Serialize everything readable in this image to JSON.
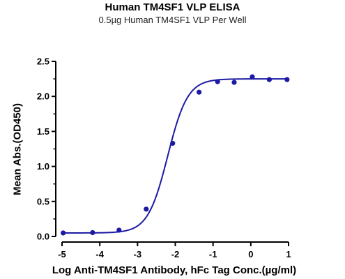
{
  "chart_data": {
    "type": "scatter",
    "title": "Human TM4SF1 VLP ELISA",
    "subtitle": "0.5µg Human TM4SF1 VLP Per Well",
    "xlabel": "Log Anti-TM4SF1 Antibody, hFc Tag Conc.(µg/ml)",
    "ylabel": "Mean Abs.(OD450)",
    "xlim": [
      -5,
      1
    ],
    "ylim": [
      0,
      2.5
    ],
    "xticks": [
      -5,
      -4,
      -3,
      -2,
      -1,
      0,
      1
    ],
    "yticks": [
      0.0,
      0.5,
      1.0,
      1.5,
      2.0,
      2.5
    ],
    "xtick_labels": [
      "-5",
      "-4",
      "-3",
      "-2",
      "-1",
      "0",
      "1"
    ],
    "ytick_labels": [
      "0.0",
      "0.5",
      "1.0",
      "1.5",
      "2.0",
      "2.5"
    ],
    "grid": false,
    "series": [
      {
        "points": [
          {
            "x": -4.97,
            "y": 0.05
          },
          {
            "x": -4.19,
            "y": 0.055
          },
          {
            "x": -3.49,
            "y": 0.09
          },
          {
            "x": -2.77,
            "y": 0.39
          },
          {
            "x": -2.07,
            "y": 1.33
          },
          {
            "x": -1.37,
            "y": 2.06
          },
          {
            "x": -0.88,
            "y": 2.21
          },
          {
            "x": -0.44,
            "y": 2.2
          },
          {
            "x": 0.04,
            "y": 2.28
          },
          {
            "x": 0.49,
            "y": 2.24
          },
          {
            "x": 0.96,
            "y": 2.24
          }
        ],
        "fit": {
          "model": "4PL",
          "bottom": 0.05,
          "top": 2.25,
          "ec50_log": -2.2,
          "hill": 1.65
        }
      }
    ],
    "colors": {
      "series": "#1c1aa3",
      "axis": "#000000"
    }
  }
}
